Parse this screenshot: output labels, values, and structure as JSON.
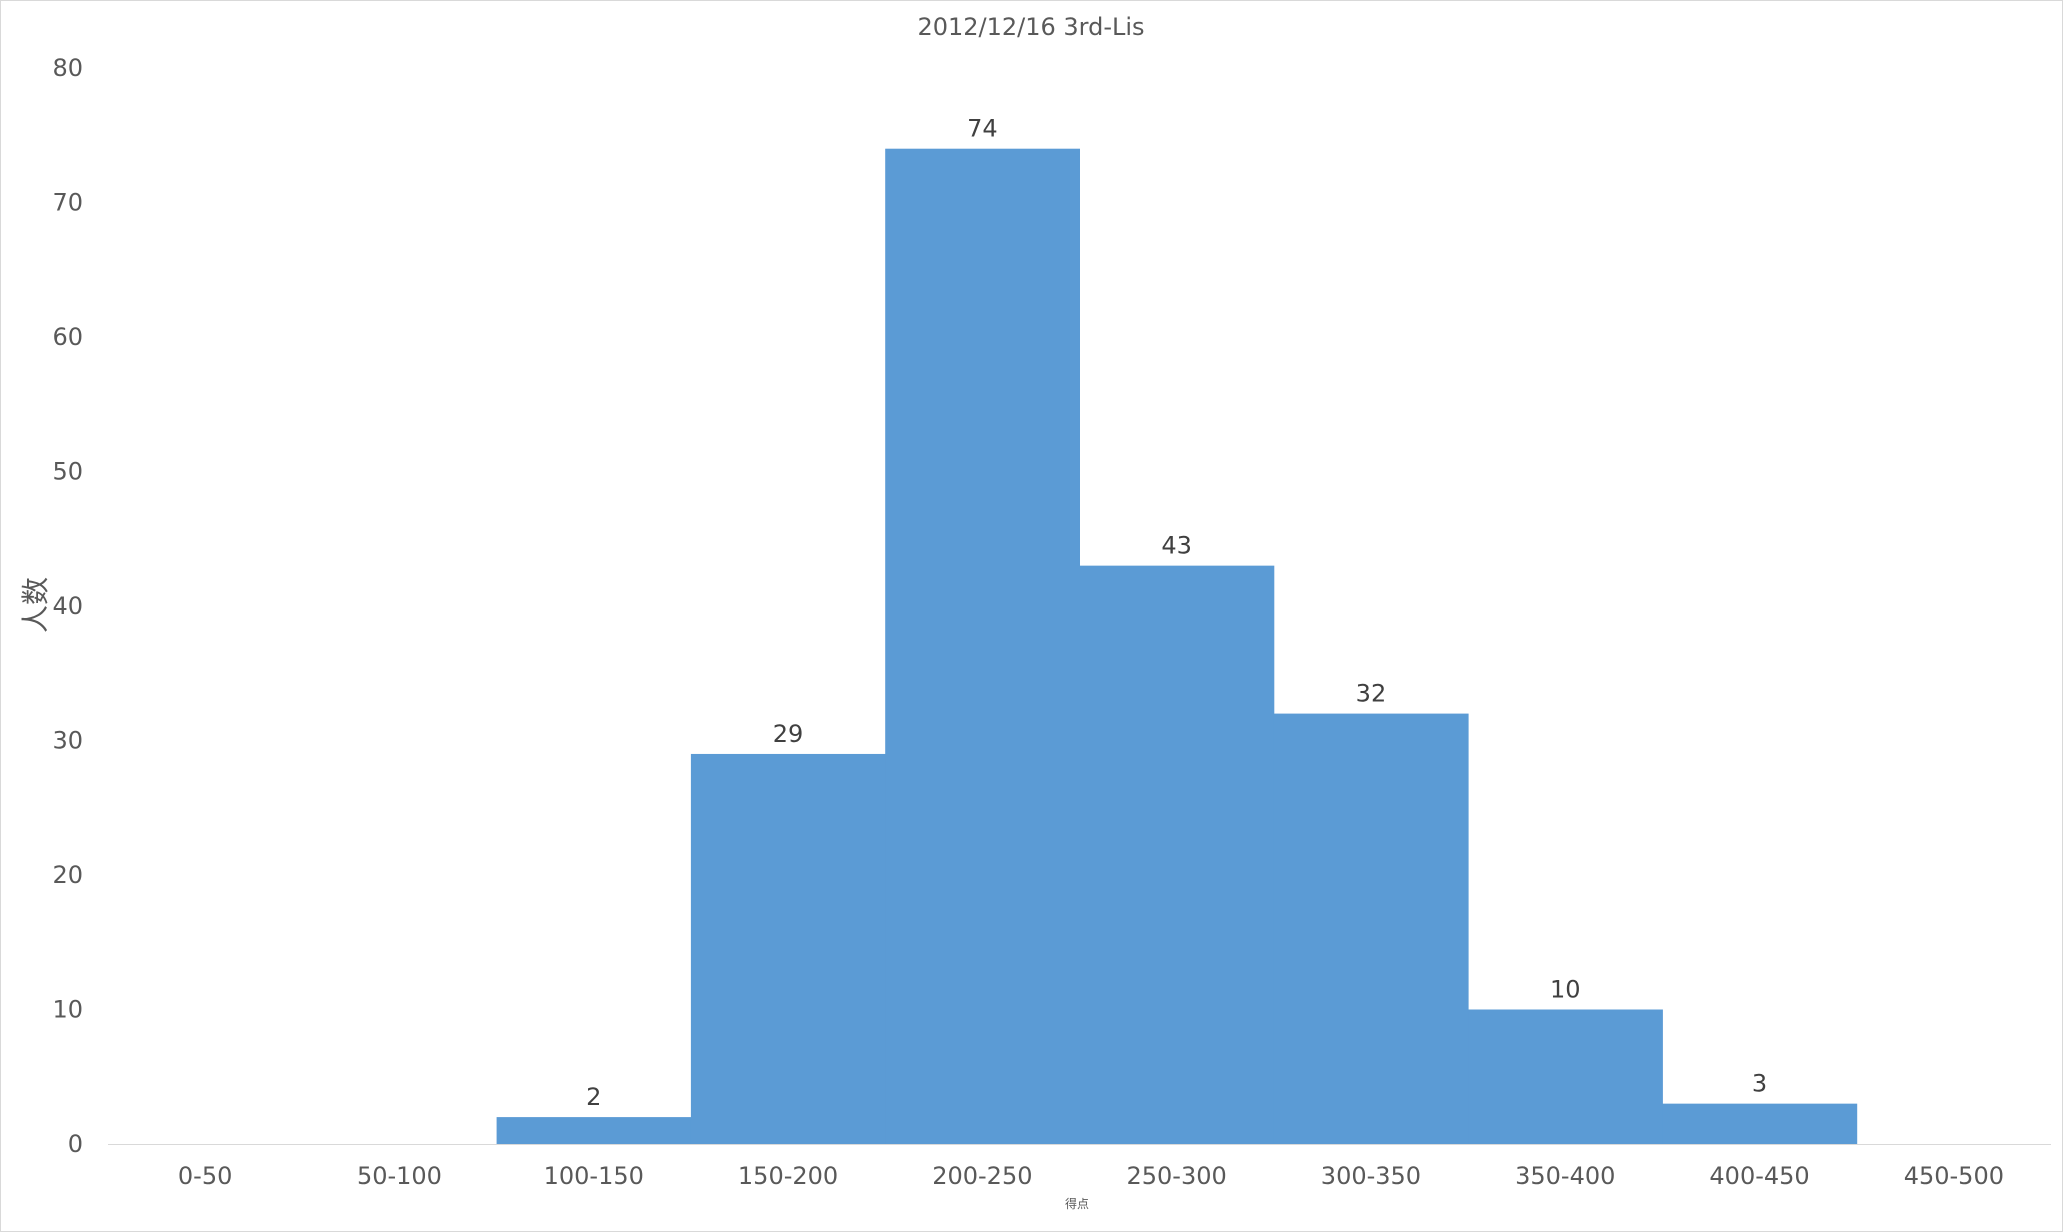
{
  "chart_data": {
    "type": "bar",
    "title": "2012/12/16 3rd-Lis",
    "xlabel": "得点",
    "ylabel": "人数",
    "categories": [
      "0-50",
      "50-100",
      "100-150",
      "150-200",
      "200-250",
      "250-300",
      "300-350",
      "350-400",
      "400-450",
      "450-500"
    ],
    "values": [
      0,
      0,
      2,
      29,
      74,
      43,
      32,
      10,
      3,
      0
    ],
    "data_labels": [
      null,
      null,
      "2",
      "29",
      "74",
      "43",
      "32",
      "10",
      "3",
      null
    ],
    "ylim": [
      0,
      80
    ],
    "yticks": [
      0,
      10,
      20,
      30,
      40,
      50,
      60,
      70,
      80
    ],
    "grid": false,
    "legend": "none",
    "bar_gap": 0,
    "bar_color": "#5b9bd5"
  }
}
